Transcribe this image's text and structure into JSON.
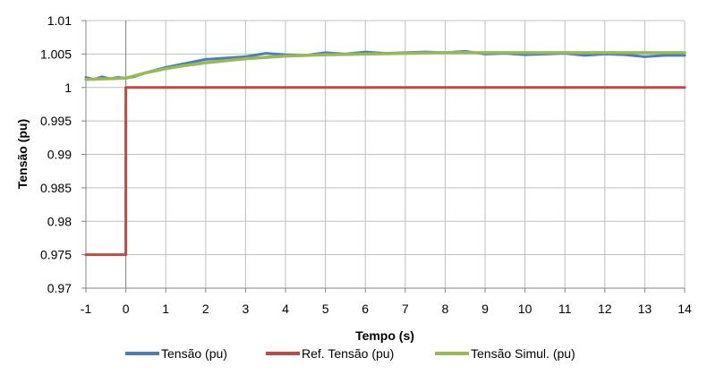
{
  "chart_data": {
    "type": "line",
    "xlabel": "Tempo (s)",
    "ylabel": "Tensão (pu)",
    "xlim": [
      -1,
      14
    ],
    "ylim": [
      0.97,
      1.01
    ],
    "grid": true,
    "legend_position": "bottom",
    "x_ticks": [
      "-1",
      "0",
      "1",
      "2",
      "3",
      "4",
      "5",
      "6",
      "7",
      "8",
      "9",
      "10",
      "11",
      "12",
      "13",
      "14"
    ],
    "y_ticks": [
      "0.97",
      "0.975",
      "0.98",
      "0.985",
      "0.99",
      "0.995",
      "1",
      "1.005",
      "1.01"
    ],
    "series": [
      {
        "name": "Tensão (pu)",
        "color": "#4a7ebb",
        "x": [
          -1,
          -0.8,
          -0.6,
          -0.4,
          -0.2,
          0,
          0.2,
          0.5,
          1,
          1.5,
          2,
          2.5,
          3,
          3.5,
          4,
          4.5,
          5,
          5.5,
          6,
          6.5,
          7,
          7.5,
          8,
          8.5,
          9,
          9.5,
          10,
          10.5,
          11,
          11.5,
          12,
          12.5,
          13,
          13.5,
          14
        ],
        "y": [
          1.0015,
          1.0012,
          1.0016,
          1.0013,
          1.0015,
          1.0014,
          1.0016,
          1.0022,
          1.003,
          1.0036,
          1.0042,
          1.0044,
          1.0046,
          1.0051,
          1.0049,
          1.0048,
          1.0052,
          1.005,
          1.0053,
          1.0051,
          1.0052,
          1.0053,
          1.0052,
          1.0054,
          1.005,
          1.0051,
          1.0049,
          1.005,
          1.0051,
          1.0048,
          1.005,
          1.0049,
          1.0046,
          1.0048,
          1.0048
        ]
      },
      {
        "name": "Ref. Tensão (pu)",
        "color": "#be4b48",
        "x": [
          -1,
          0,
          0,
          14
        ],
        "y": [
          0.975,
          0.975,
          1.0,
          1.0
        ]
      },
      {
        "name": "Tensão Simul. (pu)",
        "color": "#98b954",
        "x": [
          -1,
          0,
          0.5,
          1,
          1.5,
          2,
          2.5,
          3,
          3.5,
          4,
          5,
          6,
          7,
          8,
          9,
          10,
          11,
          12,
          13,
          14
        ],
        "y": [
          1.0012,
          1.0014,
          1.0022,
          1.0028,
          1.0033,
          1.0037,
          1.004,
          1.0043,
          1.0045,
          1.0047,
          1.0049,
          1.005,
          1.0051,
          1.0052,
          1.0052,
          1.0052,
          1.0052,
          1.0052,
          1.0052,
          1.0052
        ]
      }
    ]
  }
}
